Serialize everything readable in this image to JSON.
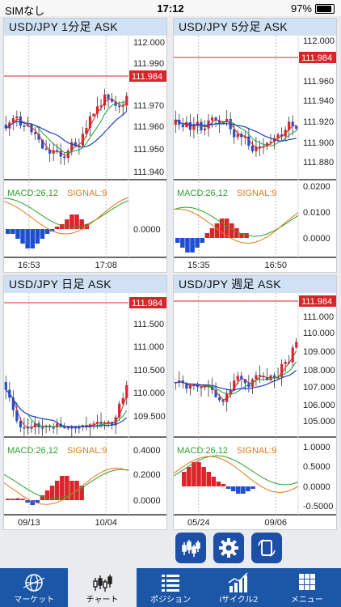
{
  "status_bar": {
    "carrier": "SIMなし",
    "time": "17:12",
    "battery": "97%"
  },
  "charts": [
    {
      "title": "USD/JPY 1分足 ASK",
      "price_ticks": [
        "112.000",
        "111.990",
        "111.970",
        "111.960",
        "111.950",
        "111.940"
      ],
      "current_price": "111.984",
      "macd_label": "MACD:26,12",
      "signal_label": "SIGNAL:9",
      "macd_ticks": [
        "0.0000"
      ],
      "time_ticks": [
        "16:53",
        "17:08"
      ]
    },
    {
      "title": "USD/JPY 5分足 ASK",
      "price_ticks": [
        "112.000",
        "111.960",
        "111.940",
        "111.920",
        "111.900",
        "111.880"
      ],
      "current_price": "111.984",
      "macd_label": "MACD:26,12",
      "signal_label": "SIGNAL:9",
      "macd_ticks": [
        "0.0200",
        "0.0100",
        "0.0000"
      ],
      "time_ticks": [
        "15:35",
        "16:50"
      ]
    },
    {
      "title": "USD/JPY 日足 ASK",
      "price_ticks": [
        "111.500",
        "111.000",
        "110.500",
        "110.000",
        "109.500"
      ],
      "current_price": "111.984",
      "macd_label": "MACD:26,12",
      "signal_label": "SIGNAL:9",
      "macd_ticks": [
        "0.4000",
        "0.2000",
        "0.0000"
      ],
      "time_ticks": [
        "09/13",
        "10/04"
      ]
    },
    {
      "title": "USD/JPY 週足 ASK",
      "price_ticks": [
        "111.000",
        "110.000",
        "109.000",
        "108.000",
        "107.000",
        "106.000",
        "105.000"
      ],
      "current_price": "111.984",
      "macd_label": "MACD:26,12",
      "signal_label": "SIGNAL:9",
      "macd_ticks": [
        "1.0000",
        "0.5000",
        "0.0000",
        "-0.5000"
      ],
      "time_ticks": [
        "05/24",
        "09/06"
      ]
    }
  ],
  "tabs": [
    "マーケット",
    "チャート",
    "ポジション",
    "iサイクル2",
    "メニュー"
  ],
  "colors": {
    "up": "#d9252a",
    "down": "#1f4fd0",
    "ma_short": "#d9252a",
    "ma_mid": "#22a03a",
    "ma_long": "#1f3fbf",
    "macd": "#2ca02c",
    "signal": "#e07a1a",
    "accent": "#1c56a6"
  }
}
